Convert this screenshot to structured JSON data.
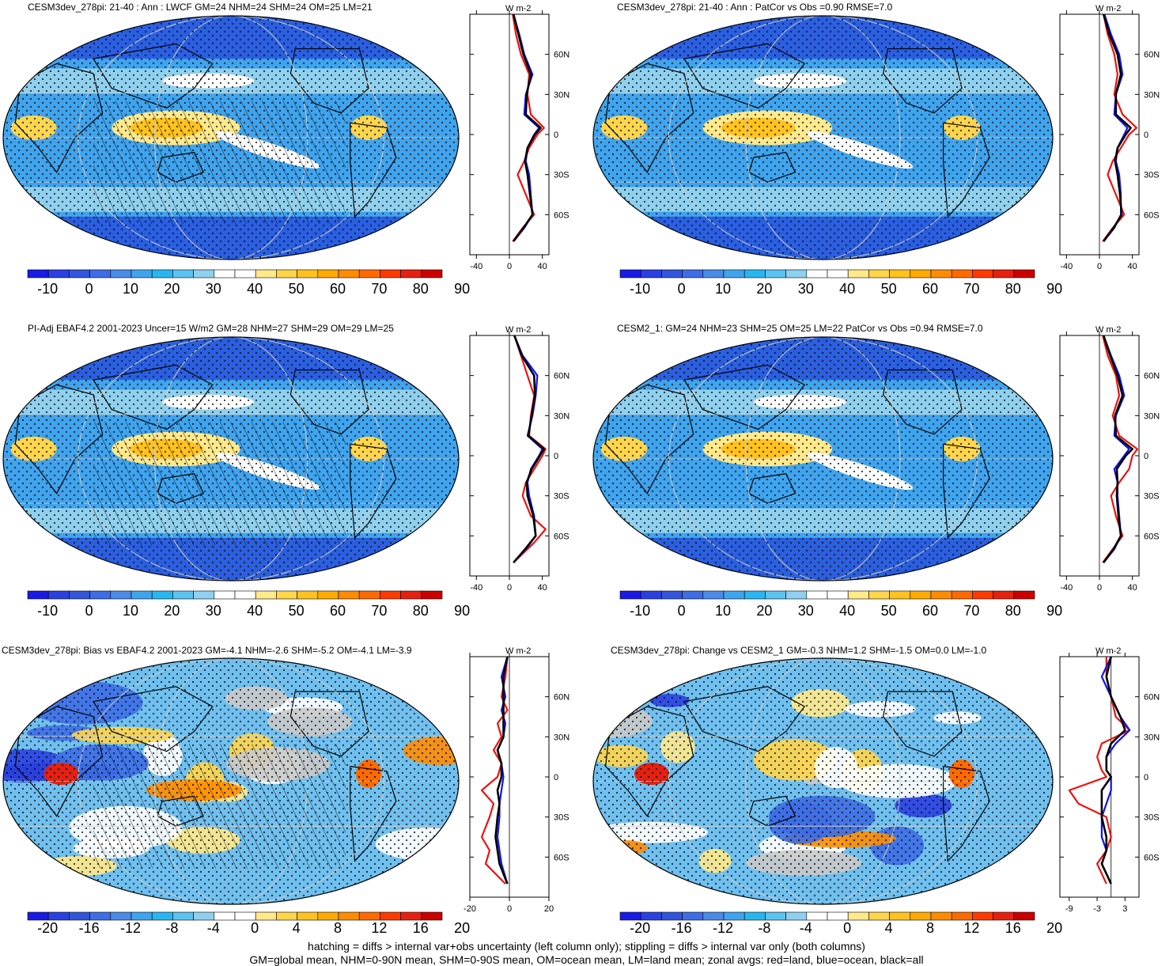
{
  "panels": [
    {
      "title": "CESM3dev_278pi: 21-40 : Ann : LWCF GM=24 NHM=24 SHM=24 OM=25 LM=21",
      "hatch": true,
      "stipple": true,
      "cbar": "abs",
      "zon": "abs",
      "curves": {
        "land": [
          [
            90,
            4
          ],
          [
            75,
            8
          ],
          [
            60,
            14
          ],
          [
            45,
            24
          ],
          [
            30,
            22
          ],
          [
            15,
            26
          ],
          [
            5,
            42
          ],
          [
            0,
            34
          ],
          [
            -10,
            24
          ],
          [
            -20,
            18
          ],
          [
            -30,
            10
          ],
          [
            -45,
            20
          ],
          [
            -60,
            30
          ],
          [
            -70,
            16
          ],
          [
            -80,
            4
          ]
        ],
        "ocean": [
          [
            90,
            5
          ],
          [
            75,
            12
          ],
          [
            60,
            18
          ],
          [
            45,
            28
          ],
          [
            30,
            20
          ],
          [
            15,
            18
          ],
          [
            5,
            36
          ],
          [
            0,
            30
          ],
          [
            -10,
            22
          ],
          [
            -20,
            20
          ],
          [
            -30,
            24
          ],
          [
            -45,
            26
          ],
          [
            -60,
            28
          ],
          [
            -70,
            18
          ],
          [
            -80,
            5
          ]
        ],
        "all": [
          [
            90,
            5
          ],
          [
            75,
            11
          ],
          [
            60,
            17
          ],
          [
            45,
            26
          ],
          [
            30,
            21
          ],
          [
            15,
            20
          ],
          [
            5,
            38
          ],
          [
            0,
            31
          ],
          [
            -10,
            22
          ],
          [
            -20,
            19
          ],
          [
            -30,
            22
          ],
          [
            -45,
            25
          ],
          [
            -60,
            28
          ],
          [
            -70,
            17
          ],
          [
            -80,
            5
          ]
        ]
      }
    },
    {
      "title": "CESM3dev_278pi: 21-40 : Ann : PatCor vs Obs =0.90 RMSE=7.0",
      "hatch": false,
      "stipple": true,
      "cbar": "abs",
      "zon": "abs",
      "curves": {
        "land": [
          [
            90,
            5
          ],
          [
            75,
            10
          ],
          [
            60,
            18
          ],
          [
            45,
            22
          ],
          [
            30,
            18
          ],
          [
            15,
            28
          ],
          [
            5,
            45
          ],
          [
            0,
            36
          ],
          [
            -10,
            26
          ],
          [
            -20,
            16
          ],
          [
            -30,
            10
          ],
          [
            -45,
            20
          ],
          [
            -60,
            30
          ],
          [
            -70,
            16
          ],
          [
            -80,
            4
          ]
        ],
        "ocean": [
          [
            90,
            6
          ],
          [
            75,
            14
          ],
          [
            60,
            24
          ],
          [
            45,
            28
          ],
          [
            30,
            20
          ],
          [
            15,
            18
          ],
          [
            5,
            34
          ],
          [
            0,
            30
          ],
          [
            -10,
            22
          ],
          [
            -20,
            20
          ],
          [
            -30,
            24
          ],
          [
            -45,
            26
          ],
          [
            -60,
            26
          ],
          [
            -70,
            18
          ],
          [
            -80,
            5
          ]
        ],
        "all": [
          [
            90,
            5
          ],
          [
            75,
            12
          ],
          [
            60,
            22
          ],
          [
            45,
            26
          ],
          [
            30,
            20
          ],
          [
            15,
            20
          ],
          [
            5,
            38
          ],
          [
            0,
            32
          ],
          [
            -10,
            22
          ],
          [
            -20,
            19
          ],
          [
            -30,
            22
          ],
          [
            -45,
            25
          ],
          [
            -60,
            27
          ],
          [
            -70,
            17
          ],
          [
            -80,
            5
          ]
        ]
      }
    },
    {
      "title": "PI-Adj EBAF4.2 2001-2023 Uncer=15 W/m2 GM=28 NHM=27 SHM=29 OM=29 LM=25",
      "hatch": true,
      "stipple": true,
      "cbar": "abs",
      "zon": "abs",
      "curves": {
        "land": [
          [
            90,
            6
          ],
          [
            75,
            14
          ],
          [
            60,
            22
          ],
          [
            45,
            30
          ],
          [
            30,
            26
          ],
          [
            15,
            24
          ],
          [
            5,
            44
          ],
          [
            0,
            40
          ],
          [
            -10,
            30
          ],
          [
            -20,
            20
          ],
          [
            -30,
            16
          ],
          [
            -45,
            26
          ],
          [
            -55,
            44
          ],
          [
            -65,
            30
          ],
          [
            -80,
            5
          ]
        ],
        "ocean": [
          [
            90,
            6
          ],
          [
            75,
            16
          ],
          [
            60,
            34
          ],
          [
            45,
            32
          ],
          [
            30,
            28
          ],
          [
            15,
            22
          ],
          [
            5,
            40
          ],
          [
            0,
            36
          ],
          [
            -10,
            26
          ],
          [
            -20,
            22
          ],
          [
            -30,
            24
          ],
          [
            -45,
            30
          ],
          [
            -60,
            32
          ],
          [
            -70,
            20
          ],
          [
            -80,
            5
          ]
        ],
        "all": [
          [
            90,
            6
          ],
          [
            75,
            15
          ],
          [
            60,
            30
          ],
          [
            45,
            31
          ],
          [
            30,
            27
          ],
          [
            15,
            23
          ],
          [
            5,
            42
          ],
          [
            0,
            37
          ],
          [
            -10,
            27
          ],
          [
            -20,
            21
          ],
          [
            -30,
            22
          ],
          [
            -45,
            29
          ],
          [
            -60,
            32
          ],
          [
            -70,
            19
          ],
          [
            -80,
            5
          ]
        ]
      }
    },
    {
      "title": "CESM2_1: GM=24 NHM=23 SHM=25 OM=25 LM=22 PatCor vs Obs =0.94 RMSE=7.0",
      "hatch": false,
      "stipple": true,
      "cbar": "abs",
      "zon": "abs",
      "curves": {
        "land": [
          [
            90,
            4
          ],
          [
            75,
            10
          ],
          [
            60,
            20
          ],
          [
            45,
            24
          ],
          [
            30,
            16
          ],
          [
            15,
            24
          ],
          [
            5,
            46
          ],
          [
            0,
            40
          ],
          [
            -10,
            36
          ],
          [
            -20,
            24
          ],
          [
            -30,
            14
          ],
          [
            -45,
            20
          ],
          [
            -60,
            28
          ],
          [
            -70,
            16
          ],
          [
            -80,
            4
          ]
        ],
        "ocean": [
          [
            90,
            5
          ],
          [
            75,
            14
          ],
          [
            60,
            24
          ],
          [
            45,
            30
          ],
          [
            30,
            20
          ],
          [
            15,
            18
          ],
          [
            5,
            36
          ],
          [
            0,
            30
          ],
          [
            -10,
            18
          ],
          [
            -20,
            22
          ],
          [
            -30,
            22
          ],
          [
            -45,
            24
          ],
          [
            -60,
            26
          ],
          [
            -70,
            18
          ],
          [
            -80,
            5
          ]
        ],
        "all": [
          [
            90,
            5
          ],
          [
            75,
            13
          ],
          [
            60,
            22
          ],
          [
            45,
            28
          ],
          [
            30,
            19
          ],
          [
            15,
            20
          ],
          [
            5,
            40
          ],
          [
            0,
            32
          ],
          [
            -10,
            21
          ],
          [
            -20,
            22
          ],
          [
            -30,
            21
          ],
          [
            -45,
            23
          ],
          [
            -60,
            26
          ],
          [
            -70,
            17
          ],
          [
            -80,
            5
          ]
        ]
      }
    },
    {
      "title": "CESM3dev_278pi: Bias vs EBAF4.2 2001-2023 GM=-4.1 NHM=-2.6 SHM=-5.2 OM=-4.1 LM=-3.9",
      "hatch": true,
      "stipple": true,
      "cbar": "diff",
      "zon": "bias",
      "curves": {
        "land": [
          [
            90,
            -1
          ],
          [
            75,
            -2
          ],
          [
            60,
            -4
          ],
          [
            50,
            -1
          ],
          [
            40,
            -6
          ],
          [
            30,
            -4
          ],
          [
            20,
            -8
          ],
          [
            10,
            -4
          ],
          [
            0,
            -6
          ],
          [
            -10,
            -14
          ],
          [
            -20,
            -8
          ],
          [
            -30,
            -10
          ],
          [
            -45,
            -14
          ],
          [
            -55,
            -10
          ],
          [
            -65,
            -12
          ],
          [
            -80,
            -2
          ]
        ],
        "ocean": [
          [
            90,
            -1
          ],
          [
            75,
            -4
          ],
          [
            60,
            -2
          ],
          [
            50,
            -4
          ],
          [
            40,
            -2
          ],
          [
            30,
            -3
          ],
          [
            20,
            -6
          ],
          [
            10,
            -4
          ],
          [
            0,
            -3
          ],
          [
            -10,
            -4
          ],
          [
            -20,
            -5
          ],
          [
            -30,
            -5
          ],
          [
            -45,
            -6
          ],
          [
            -55,
            -5
          ],
          [
            -65,
            -4
          ],
          [
            -80,
            -1
          ]
        ],
        "all": [
          [
            90,
            -1
          ],
          [
            75,
            -3
          ],
          [
            60,
            -3
          ],
          [
            50,
            -3
          ],
          [
            40,
            -3
          ],
          [
            30,
            -3
          ],
          [
            20,
            -6
          ],
          [
            10,
            -4
          ],
          [
            0,
            -4
          ],
          [
            -10,
            -6
          ],
          [
            -20,
            -5
          ],
          [
            -30,
            -6
          ],
          [
            -45,
            -7
          ],
          [
            -55,
            -6
          ],
          [
            -65,
            -5
          ],
          [
            -80,
            -1
          ]
        ]
      }
    },
    {
      "title": "CESM3dev_278pi: Change vs CESM2_1 GM=-0.3 NHM=1.2 SHM=-1.5 OM=0.0 LM=-1.0",
      "hatch": false,
      "stipple": true,
      "cbar": "diff",
      "zon": "chg",
      "curves": {
        "land": [
          [
            90,
            -1
          ],
          [
            75,
            -1
          ],
          [
            60,
            0
          ],
          [
            45,
            1
          ],
          [
            35,
            4
          ],
          [
            25,
            -2
          ],
          [
            15,
            -3
          ],
          [
            5,
            -2
          ],
          [
            0,
            -1
          ],
          [
            -10,
            -9
          ],
          [
            -20,
            -7
          ],
          [
            -30,
            -1
          ],
          [
            -45,
            0
          ],
          [
            -55,
            -1
          ],
          [
            -65,
            -3
          ],
          [
            -80,
            -1
          ]
        ],
        "ocean": [
          [
            90,
            0
          ],
          [
            75,
            -2
          ],
          [
            60,
            0
          ],
          [
            45,
            2
          ],
          [
            35,
            4
          ],
          [
            25,
            1
          ],
          [
            15,
            -1
          ],
          [
            5,
            -1
          ],
          [
            0,
            0
          ],
          [
            -10,
            0
          ],
          [
            -20,
            -1
          ],
          [
            -30,
            -2
          ],
          [
            -45,
            -2
          ],
          [
            -55,
            -1
          ],
          [
            -65,
            -2
          ],
          [
            -80,
            0
          ]
        ],
        "all": [
          [
            90,
            0
          ],
          [
            75,
            -1
          ],
          [
            60,
            0
          ],
          [
            45,
            2
          ],
          [
            35,
            3
          ],
          [
            25,
            0
          ],
          [
            15,
            -1
          ],
          [
            5,
            -1
          ],
          [
            0,
            0
          ],
          [
            -10,
            -2
          ],
          [
            -20,
            -2
          ],
          [
            -30,
            -2
          ],
          [
            -45,
            -1
          ],
          [
            -55,
            -1
          ],
          [
            -65,
            -2
          ],
          [
            -80,
            0
          ]
        ]
      }
    }
  ],
  "colorbars": {
    "abs": {
      "labels": [
        "-10",
        "0",
        "10",
        "20",
        "30",
        "40",
        "50",
        "60",
        "70",
        "80",
        "90"
      ]
    },
    "diff": {
      "labels": [
        "-20",
        "-16",
        "-12",
        "-8",
        "-4",
        "0",
        "4",
        "8",
        "12",
        "16",
        "20"
      ]
    }
  },
  "zonal_axes": {
    "unit": "W m-2",
    "lat_labels": [
      "60N",
      "30N",
      "0",
      "30S",
      "60S"
    ],
    "abs_ticks": [
      "-40",
      "0",
      "40"
    ],
    "bias_ticks": [
      "-20",
      "0",
      "20"
    ],
    "chg_ticks": [
      "-9",
      "-3",
      "3"
    ]
  },
  "colors": {
    "land": "#ee1111",
    "ocean": "#1111ee",
    "all": "#000000"
  },
  "footer": {
    "line1": "hatching = diffs > internal var+obs uncertainty (left column only); stippling = diffs > internal var only (both columns)",
    "line2": "GM=global mean, NHM=0-90N mean, SHM=0-90S mean, OM=ocean mean, LM=land mean; zonal avgs: red=land, blue=ocean, black=all"
  }
}
